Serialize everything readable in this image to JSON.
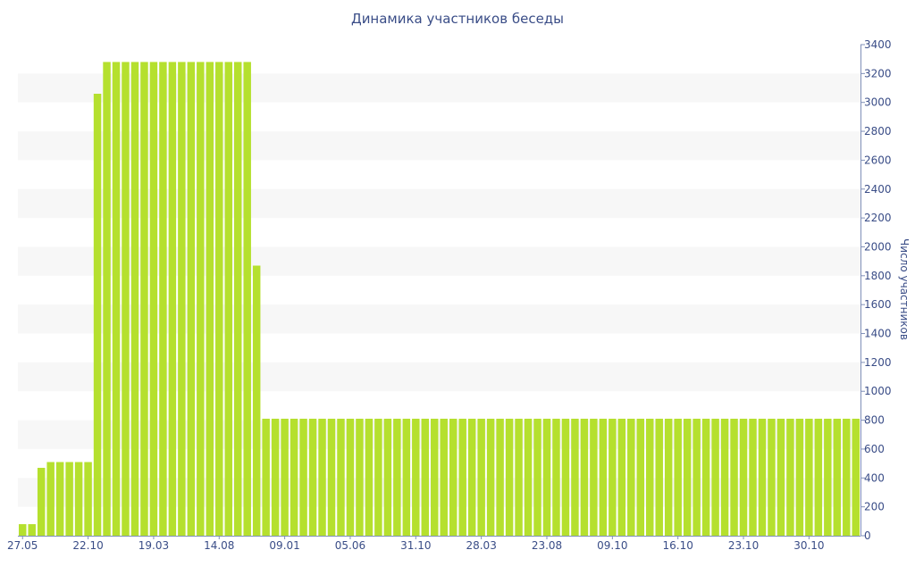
{
  "chart_data": {
    "type": "bar",
    "title": "Динамика участников беседы",
    "xlabel": "",
    "ylabel": "Число участников",
    "ylim": [
      0,
      3400
    ],
    "y_ticks": [
      0,
      200,
      400,
      600,
      800,
      1000,
      1200,
      1400,
      1600,
      1800,
      2000,
      2200,
      2400,
      2600,
      2800,
      3000,
      3200,
      3400
    ],
    "x_tick_labels": [
      {
        "index": 0,
        "label": "27.05"
      },
      {
        "index": 7,
        "label": "22.10"
      },
      {
        "index": 14,
        "label": "19.03"
      },
      {
        "index": 21,
        "label": "14.08"
      },
      {
        "index": 28,
        "label": "09.01"
      },
      {
        "index": 35,
        "label": "05.06"
      },
      {
        "index": 42,
        "label": "31.10"
      },
      {
        "index": 49,
        "label": "28.03"
      },
      {
        "index": 56,
        "label": "23.08"
      },
      {
        "index": 63,
        "label": "09.10"
      },
      {
        "index": 70,
        "label": "16.10"
      },
      {
        "index": 77,
        "label": "23.10"
      },
      {
        "index": 84,
        "label": "30.10"
      }
    ],
    "values": [
      80,
      80,
      470,
      510,
      510,
      510,
      510,
      510,
      3060,
      3280,
      3280,
      3280,
      3280,
      3280,
      3280,
      3280,
      3280,
      3280,
      3280,
      3280,
      3280,
      3280,
      3280,
      3280,
      3280,
      1870,
      810,
      810,
      810,
      810,
      810,
      810,
      810,
      810,
      810,
      810,
      810,
      810,
      810,
      810,
      810,
      810,
      810,
      810,
      810,
      810,
      810,
      810,
      810,
      810,
      810,
      810,
      810,
      810,
      810,
      810,
      810,
      810,
      810,
      810,
      810,
      810,
      810,
      810,
      810,
      810,
      810,
      810,
      810,
      810,
      810,
      810,
      810,
      810,
      810,
      810,
      810,
      810,
      810,
      810,
      810,
      810,
      810,
      810,
      810,
      810,
      810,
      810,
      810,
      810
    ],
    "bar_color": "#b5e02e",
    "band_color": "#f7f7f7",
    "axis_text_color": "#3a4d87",
    "grid": "alternating horizontal bands",
    "y_axis_position": "right"
  }
}
